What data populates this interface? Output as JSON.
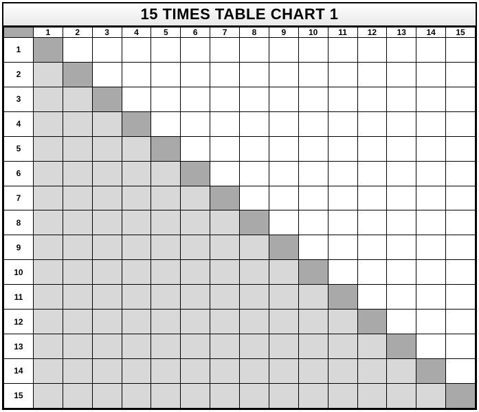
{
  "chart": {
    "title": "15 TIMES TABLE CHART 1",
    "title_fontsize": 22,
    "size": 15,
    "header_fontsize": 12,
    "row_header_fontsize": 12,
    "colors": {
      "corner": "#a9a9a9",
      "diagonal": "#a9a9a9",
      "below_diagonal": "#d8d8d8",
      "above_diagonal": "#ffffff",
      "border": "#000000",
      "title_bg_top": "#ffffff",
      "title_bg_bottom": "#e9e9e9",
      "text": "#000000"
    },
    "column_headers": [
      "1",
      "2",
      "3",
      "4",
      "5",
      "6",
      "7",
      "8",
      "9",
      "10",
      "11",
      "12",
      "13",
      "14",
      "15"
    ],
    "row_headers": [
      "1",
      "2",
      "3",
      "4",
      "5",
      "6",
      "7",
      "8",
      "9",
      "10",
      "11",
      "12",
      "13",
      "14",
      "15"
    ]
  }
}
